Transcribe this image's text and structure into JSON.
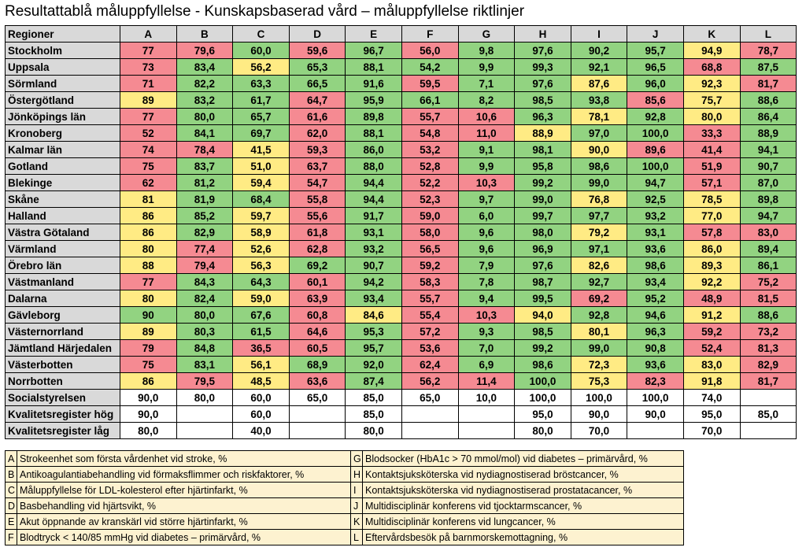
{
  "title": "Resultattablå måluppfyllelse - Kunskapsbaserad vård – måluppfyllelse riktlinjer",
  "colors": {
    "green": "#92d381",
    "yellow": "#ffeb84",
    "red": "#f58a92",
    "header": "#d9d9d9",
    "legend": "#fdf2d0"
  },
  "table": {
    "corner_label": "Regioner",
    "columns": [
      "A",
      "B",
      "C",
      "D",
      "E",
      "F",
      "G",
      "H",
      "I",
      "J",
      "K",
      "L"
    ],
    "rows": [
      {
        "name": "Stockholm",
        "values": [
          "77",
          "79,6",
          "60,0",
          "59,6",
          "96,7",
          "56,0",
          "9,8",
          "97,6",
          "90,2",
          "95,7",
          "94,9",
          "78,7"
        ],
        "colors": [
          "r",
          "r",
          "g",
          "r",
          "g",
          "r",
          "g",
          "g",
          "g",
          "g",
          "y",
          "r"
        ]
      },
      {
        "name": "Uppsala",
        "values": [
          "73",
          "83,4",
          "56,2",
          "65,3",
          "88,1",
          "54,2",
          "9,9",
          "99,3",
          "92,1",
          "96,5",
          "68,8",
          "87,5"
        ],
        "colors": [
          "r",
          "g",
          "y",
          "g",
          "g",
          "g",
          "g",
          "g",
          "g",
          "g",
          "r",
          "g"
        ]
      },
      {
        "name": "Sörmland",
        "values": [
          "71",
          "82,2",
          "63,3",
          "66,5",
          "91,6",
          "59,5",
          "7,1",
          "97,6",
          "87,6",
          "96,0",
          "92,3",
          "81,7"
        ],
        "colors": [
          "r",
          "g",
          "g",
          "g",
          "g",
          "r",
          "g",
          "g",
          "y",
          "g",
          "y",
          "r"
        ]
      },
      {
        "name": "Östergötland",
        "values": [
          "89",
          "83,2",
          "61,7",
          "64,7",
          "95,9",
          "66,1",
          "8,2",
          "98,5",
          "93,8",
          "85,6",
          "75,7",
          "88,6"
        ],
        "colors": [
          "y",
          "g",
          "g",
          "r",
          "g",
          "g",
          "g",
          "g",
          "g",
          "r",
          "y",
          "g"
        ]
      },
      {
        "name": "Jönköpings län",
        "values": [
          "77",
          "80,0",
          "65,7",
          "61,6",
          "89,8",
          "55,7",
          "10,6",
          "96,3",
          "78,1",
          "92,8",
          "80,0",
          "86,4"
        ],
        "colors": [
          "r",
          "g",
          "g",
          "r",
          "g",
          "r",
          "r",
          "g",
          "y",
          "g",
          "y",
          "g"
        ]
      },
      {
        "name": "Kronoberg",
        "values": [
          "52",
          "84,1",
          "69,7",
          "62,0",
          "88,1",
          "54,8",
          "11,0",
          "88,9",
          "97,0",
          "100,0",
          "33,3",
          "88,9"
        ],
        "colors": [
          "r",
          "g",
          "g",
          "r",
          "g",
          "r",
          "r",
          "y",
          "g",
          "g",
          "r",
          "g"
        ]
      },
      {
        "name": "Kalmar län",
        "values": [
          "74",
          "78,4",
          "41,5",
          "59,3",
          "86,0",
          "53,2",
          "9,1",
          "98,1",
          "90,0",
          "89,6",
          "41,4",
          "94,1"
        ],
        "colors": [
          "r",
          "r",
          "y",
          "r",
          "g",
          "r",
          "g",
          "g",
          "y",
          "r",
          "r",
          "g"
        ]
      },
      {
        "name": "Gotland",
        "values": [
          "75",
          "83,7",
          "51,0",
          "63,7",
          "88,0",
          "52,8",
          "9,9",
          "95,8",
          "98,6",
          "100,0",
          "51,9",
          "90,7"
        ],
        "colors": [
          "r",
          "g",
          "y",
          "r",
          "g",
          "r",
          "g",
          "g",
          "g",
          "g",
          "r",
          "g"
        ]
      },
      {
        "name": "Blekinge",
        "values": [
          "62",
          "81,2",
          "59,4",
          "54,7",
          "94,4",
          "52,2",
          "10,3",
          "99,2",
          "99,0",
          "94,7",
          "57,1",
          "87,0"
        ],
        "colors": [
          "r",
          "g",
          "y",
          "r",
          "g",
          "r",
          "r",
          "g",
          "g",
          "g",
          "r",
          "g"
        ]
      },
      {
        "name": "Skåne",
        "values": [
          "81",
          "81,9",
          "68,4",
          "55,8",
          "94,4",
          "52,3",
          "9,7",
          "99,0",
          "76,8",
          "92,5",
          "78,5",
          "89,8"
        ],
        "colors": [
          "y",
          "g",
          "g",
          "r",
          "g",
          "r",
          "g",
          "g",
          "y",
          "g",
          "y",
          "g"
        ]
      },
      {
        "name": "Halland",
        "values": [
          "86",
          "85,2",
          "59,7",
          "55,6",
          "91,7",
          "59,0",
          "6,0",
          "99,7",
          "97,7",
          "93,2",
          "77,0",
          "94,7"
        ],
        "colors": [
          "y",
          "g",
          "y",
          "r",
          "g",
          "r",
          "g",
          "g",
          "g",
          "g",
          "y",
          "g"
        ]
      },
      {
        "name": "Västra Götaland",
        "values": [
          "86",
          "82,9",
          "58,9",
          "61,8",
          "93,1",
          "58,0",
          "9,6",
          "98,0",
          "79,2",
          "93,1",
          "57,8",
          "83,0"
        ],
        "colors": [
          "y",
          "g",
          "y",
          "r",
          "g",
          "r",
          "g",
          "g",
          "y",
          "g",
          "r",
          "r"
        ]
      },
      {
        "name": "Värmland",
        "values": [
          "80",
          "77,4",
          "52,6",
          "62,8",
          "93,2",
          "56,5",
          "9,6",
          "96,9",
          "97,1",
          "93,6",
          "86,0",
          "89,4"
        ],
        "colors": [
          "y",
          "r",
          "y",
          "r",
          "g",
          "r",
          "g",
          "g",
          "g",
          "g",
          "y",
          "g"
        ]
      },
      {
        "name": "Örebro län",
        "values": [
          "88",
          "79,4",
          "56,3",
          "69,2",
          "90,7",
          "59,2",
          "7,9",
          "97,6",
          "82,6",
          "98,6",
          "89,3",
          "86,1"
        ],
        "colors": [
          "y",
          "r",
          "y",
          "g",
          "g",
          "r",
          "g",
          "g",
          "y",
          "g",
          "y",
          "g"
        ]
      },
      {
        "name": "Västmanland",
        "values": [
          "77",
          "84,3",
          "64,3",
          "60,1",
          "94,2",
          "58,3",
          "7,8",
          "98,7",
          "92,7",
          "93,4",
          "92,2",
          "75,2"
        ],
        "colors": [
          "r",
          "g",
          "g",
          "r",
          "g",
          "r",
          "g",
          "g",
          "g",
          "g",
          "y",
          "r"
        ]
      },
      {
        "name": "Dalarna",
        "values": [
          "80",
          "82,4",
          "59,0",
          "63,9",
          "93,4",
          "55,7",
          "9,4",
          "99,5",
          "69,2",
          "95,2",
          "48,9",
          "81,5"
        ],
        "colors": [
          "y",
          "g",
          "y",
          "r",
          "g",
          "r",
          "g",
          "g",
          "r",
          "g",
          "r",
          "r"
        ]
      },
      {
        "name": "Gävleborg",
        "values": [
          "90",
          "80,0",
          "67,6",
          "60,8",
          "84,6",
          "55,4",
          "10,3",
          "94,0",
          "92,8",
          "94,6",
          "91,2",
          "88,6"
        ],
        "colors": [
          "g",
          "g",
          "g",
          "r",
          "y",
          "r",
          "r",
          "y",
          "g",
          "g",
          "y",
          "g"
        ]
      },
      {
        "name": "Västernorrland",
        "values": [
          "89",
          "80,3",
          "61,5",
          "64,6",
          "95,3",
          "57,2",
          "9,3",
          "98,5",
          "80,1",
          "96,3",
          "59,2",
          "73,2"
        ],
        "colors": [
          "y",
          "g",
          "g",
          "r",
          "g",
          "r",
          "g",
          "g",
          "y",
          "g",
          "r",
          "r"
        ]
      },
      {
        "name": "Jämtland Härjedalen",
        "values": [
          "79",
          "84,8",
          "36,5",
          "60,5",
          "95,7",
          "53,6",
          "7,0",
          "99,2",
          "99,0",
          "90,8",
          "52,4",
          "81,3"
        ],
        "colors": [
          "r",
          "g",
          "r",
          "r",
          "g",
          "r",
          "g",
          "g",
          "g",
          "g",
          "r",
          "r"
        ]
      },
      {
        "name": "Västerbotten",
        "values": [
          "75",
          "83,1",
          "56,1",
          "68,9",
          "92,0",
          "62,4",
          "6,9",
          "98,6",
          "72,3",
          "93,6",
          "83,0",
          "82,9"
        ],
        "colors": [
          "r",
          "g",
          "y",
          "g",
          "g",
          "r",
          "g",
          "g",
          "y",
          "g",
          "y",
          "r"
        ]
      },
      {
        "name": "Norrbotten",
        "values": [
          "86",
          "79,5",
          "48,5",
          "63,6",
          "87,4",
          "56,2",
          "11,4",
          "100,0",
          "75,3",
          "82,3",
          "91,8",
          "81,7"
        ],
        "colors": [
          "y",
          "r",
          "y",
          "r",
          "g",
          "r",
          "r",
          "g",
          "y",
          "r",
          "y",
          "r"
        ]
      }
    ],
    "reference_rows": [
      {
        "name": "Socialstyrelsen",
        "values": [
          "90,0",
          "80,0",
          "60,0",
          "65,0",
          "85,0",
          "65,0",
          "10,0",
          "100,0",
          "100,0",
          "100,0",
          "74,0",
          ""
        ]
      },
      {
        "name": "Kvalitetsregister hög",
        "values": [
          "90,0",
          "",
          "60,0",
          "",
          "85,0",
          "",
          "",
          "95,0",
          "90,0",
          "90,0",
          "95,0",
          "85,0"
        ]
      },
      {
        "name": "Kvalitetsregister låg",
        "values": [
          "80,0",
          "",
          "40,0",
          "",
          "80,0",
          "",
          "",
          "80,0",
          "70,0",
          "",
          "70,0",
          ""
        ]
      }
    ]
  },
  "legend": {
    "left": [
      {
        "key": "A",
        "text": "Strokeenhet som första vårdenhet vid stroke, %"
      },
      {
        "key": "B",
        "text": "Antikoagulantiabehandling vid förmaksflimmer och riskfaktorer, %"
      },
      {
        "key": "C",
        "text": "Måluppfyllelse för LDL-kolesterol efter hjärtinfarkt, %"
      },
      {
        "key": "D",
        "text": "Basbehandling vid hjärtsvikt, %"
      },
      {
        "key": "E",
        "text": "Akut öppnande av kranskärl vid större hjärtinfarkt, %"
      },
      {
        "key": "F",
        "text": "Blodtryck < 140/85 mmHg vid diabetes – primärvård, %"
      }
    ],
    "right": [
      {
        "key": "G",
        "text": "Blodsocker (HbA1c > 70 mmol/mol) vid diabetes – primärvård, %"
      },
      {
        "key": "H",
        "text": "Kontaktsjuksköterska vid nydiagnostiserad bröstcancer, %"
      },
      {
        "key": "I",
        "text": "Kontaktsjuksköterska vid nydiagnostiserad prostatacancer, %"
      },
      {
        "key": "J",
        "text": "Multidisciplinär konferens vid tjocktarmscancer, %"
      },
      {
        "key": "K",
        "text": "Multidisciplinär konferens vid lungcancer, %"
      },
      {
        "key": "L",
        "text": "Eftervårdsbesök på barnmorskemottagning, %"
      }
    ]
  }
}
